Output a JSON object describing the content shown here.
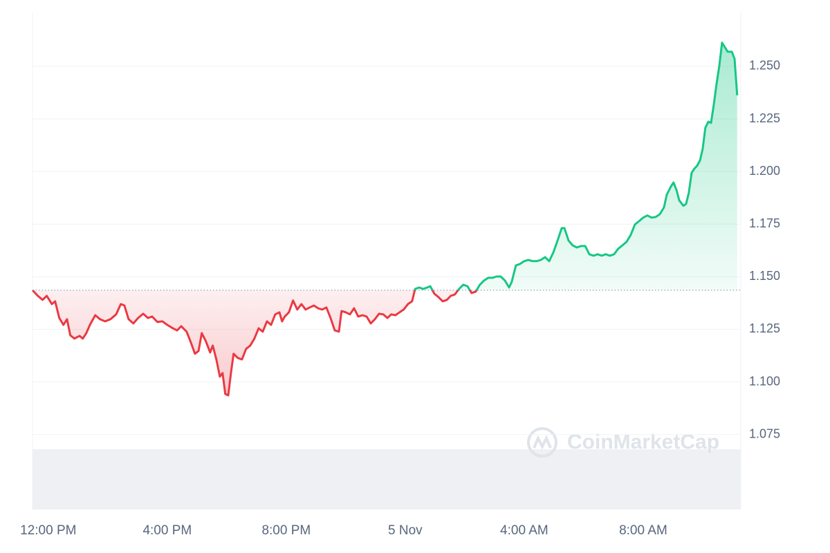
{
  "chart_data": {
    "type": "line",
    "watermark": "CoinMarketCap",
    "baseline": 1.1436,
    "up_color": "#16c784",
    "down_color": "#ea3943",
    "grid": true,
    "xlim": [
      -0.53,
      23.28
    ],
    "ylim": [
      1.0394,
      1.2756
    ],
    "xticks": [
      {
        "value": 0,
        "label": "12:00 PM"
      },
      {
        "value": 4,
        "label": "4:00 PM"
      },
      {
        "value": 8,
        "label": "8:00 PM"
      },
      {
        "value": 12,
        "label": "5 Nov"
      },
      {
        "value": 16,
        "label": "4:00 AM"
      },
      {
        "value": 20,
        "label": "8:00 AM"
      }
    ],
    "yticks": [
      1.075,
      {
        "value": 1.1,
        "label": "1.100"
      },
      1.125,
      {
        "value": 1.15,
        "label": "1.150"
      },
      1.175,
      {
        "value": 1.2,
        "label": "1.200"
      },
      1.225,
      {
        "value": 1.25,
        "label": "1.250"
      }
    ],
    "x": [
      -0.53,
      -0.35,
      -0.19,
      -0.05,
      0.12,
      0.23,
      0.37,
      0.51,
      0.63,
      0.74,
      0.88,
      1.05,
      1.16,
      1.28,
      1.4,
      1.58,
      1.74,
      1.91,
      2.09,
      2.28,
      2.44,
      2.56,
      2.7,
      2.86,
      3.02,
      3.19,
      3.35,
      3.49,
      3.67,
      3.84,
      4.0,
      4.19,
      4.33,
      4.47,
      4.65,
      4.79,
      4.93,
      5.05,
      5.16,
      5.3,
      5.44,
      5.53,
      5.65,
      5.77,
      5.86,
      5.95,
      6.05,
      6.14,
      6.23,
      6.37,
      6.51,
      6.65,
      6.79,
      6.93,
      7.07,
      7.21,
      7.35,
      7.49,
      7.63,
      7.77,
      7.86,
      7.95,
      8.09,
      8.23,
      8.37,
      8.51,
      8.65,
      8.79,
      8.93,
      9.07,
      9.21,
      9.35,
      9.49,
      9.63,
      9.77,
      9.86,
      10.0,
      10.14,
      10.28,
      10.42,
      10.56,
      10.7,
      10.84,
      10.98,
      11.12,
      11.26,
      11.4,
      11.53,
      11.67,
      11.81,
      11.95,
      12.09,
      12.23,
      12.33,
      12.47,
      12.6,
      12.74,
      12.84,
      12.98,
      13.12,
      13.26,
      13.4,
      13.53,
      13.67,
      13.81,
      13.95,
      14.09,
      14.23,
      14.37,
      14.51,
      14.65,
      14.79,
      14.93,
      15.07,
      15.21,
      15.35,
      15.49,
      15.58,
      15.72,
      15.86,
      16.0,
      16.14,
      16.28,
      16.42,
      16.56,
      16.7,
      16.84,
      16.98,
      17.12,
      17.26,
      17.35,
      17.49,
      17.63,
      17.77,
      17.91,
      18.05,
      18.19,
      18.33,
      18.47,
      18.6,
      18.74,
      18.88,
      19.02,
      19.16,
      19.3,
      19.44,
      19.58,
      19.72,
      19.86,
      20.0,
      20.14,
      20.28,
      20.42,
      20.56,
      20.7,
      20.79,
      20.93,
      21.02,
      21.12,
      21.21,
      21.35,
      21.44,
      21.53,
      21.63,
      21.72,
      21.81,
      21.91,
      22.0,
      22.09,
      22.19,
      22.28,
      22.37,
      22.47,
      22.56,
      22.65,
      22.74,
      22.84,
      22.98,
      23.07,
      23.16
    ],
    "values": [
      1.1436,
      1.1409,
      1.139,
      1.1409,
      1.137,
      1.1383,
      1.1304,
      1.1271,
      1.1298,
      1.1222,
      1.1206,
      1.1219,
      1.1206,
      1.1232,
      1.1271,
      1.1317,
      1.1298,
      1.1288,
      1.1298,
      1.1321,
      1.137,
      1.1363,
      1.1298,
      1.1278,
      1.1304,
      1.1324,
      1.1304,
      1.1311,
      1.1285,
      1.1288,
      1.1271,
      1.1255,
      1.1245,
      1.1265,
      1.1239,
      1.1189,
      1.1134,
      1.1147,
      1.1232,
      1.1193,
      1.114,
      1.1173,
      1.1107,
      1.1025,
      1.1042,
      1.0943,
      1.0936,
      1.1042,
      1.1134,
      1.1114,
      1.1107,
      1.1157,
      1.1173,
      1.1206,
      1.1255,
      1.1239,
      1.1288,
      1.1271,
      1.1321,
      1.1331,
      1.1288,
      1.1311,
      1.1331,
      1.1387,
      1.1344,
      1.137,
      1.1344,
      1.1354,
      1.1363,
      1.135,
      1.1344,
      1.1354,
      1.1304,
      1.1245,
      1.1239,
      1.1337,
      1.1331,
      1.1321,
      1.135,
      1.1311,
      1.1317,
      1.1311,
      1.1278,
      1.1298,
      1.1324,
      1.1321,
      1.1304,
      1.1321,
      1.1317,
      1.1331,
      1.1344,
      1.137,
      1.1383,
      1.1442,
      1.1449,
      1.1442,
      1.1449,
      1.1455,
      1.1419,
      1.1403,
      1.1383,
      1.139,
      1.1409,
      1.1416,
      1.1442,
      1.1462,
      1.1455,
      1.1423,
      1.1429,
      1.1462,
      1.1482,
      1.1495,
      1.1495,
      1.1501,
      1.1501,
      1.1482,
      1.1449,
      1.1475,
      1.1554,
      1.1561,
      1.1574,
      1.158,
      1.1574,
      1.1574,
      1.158,
      1.1593,
      1.1574,
      1.1616,
      1.1672,
      1.1731,
      1.1731,
      1.1672,
      1.1649,
      1.1639,
      1.1646,
      1.1646,
      1.1607,
      1.16,
      1.1607,
      1.16,
      1.1607,
      1.16,
      1.1607,
      1.1633,
      1.1649,
      1.1666,
      1.1699,
      1.1748,
      1.1764,
      1.1781,
      1.1791,
      1.1781,
      1.1784,
      1.1797,
      1.183,
      1.1889,
      1.1928,
      1.1948,
      1.1912,
      1.1863,
      1.1837,
      1.1846,
      1.1896,
      1.1994,
      1.2014,
      1.2027,
      1.2053,
      1.2109,
      1.2208,
      1.2237,
      1.2231,
      1.2316,
      1.2421,
      1.2503,
      1.2612,
      1.2592,
      1.2569,
      1.2569,
      1.2536,
      1.2362
    ]
  }
}
